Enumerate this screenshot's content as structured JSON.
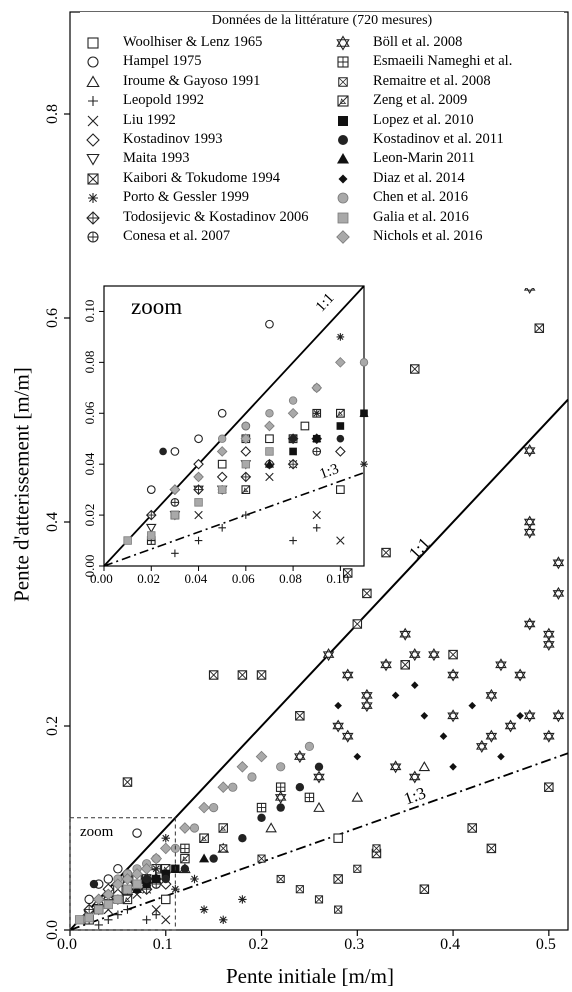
{
  "chart_data": {
    "type": "scatter",
    "xlabel": "Pente initiale [m/m]",
    "ylabel": "Pente d'atterissement [m/m]",
    "xlim": [
      0,
      0.52
    ],
    "ylim": [
      0,
      0.9
    ],
    "xticks": [
      "0.0",
      "0.1",
      "0.2",
      "0.3",
      "0.4",
      "0.5"
    ],
    "yticks": [
      "0.0",
      "0.2",
      "0.4",
      "0.6",
      "0.8"
    ],
    "legend_title": "Données de la littérature (720 mesures)",
    "legend_position": "top",
    "lines": [
      {
        "label": "1:1",
        "slope": 1.0,
        "style": "solid"
      },
      {
        "label": "1:3",
        "slope": 0.3333,
        "style": "dashdot"
      }
    ],
    "zoom_region_label": "zoom",
    "zoom_region": {
      "x": [
        0,
        0.11
      ],
      "y": [
        0,
        0.11
      ]
    },
    "inset": {
      "title": "zoom",
      "xlim": [
        0,
        0.11
      ],
      "ylim": [
        0,
        0.11
      ],
      "xticks": [
        "0.00",
        "0.02",
        "0.04",
        "0.06",
        "0.08",
        "0.10"
      ],
      "yticks": [
        "0.00",
        "0.02",
        "0.04",
        "0.06",
        "0.08",
        "0.10"
      ],
      "line_labels": [
        "1:1",
        "1:3"
      ]
    },
    "series": [
      {
        "name": "Woolhiser & Lenz 1965",
        "marker": "square-open",
        "points": [
          [
            0.28,
            0.09
          ],
          [
            0.03,
            0.02
          ],
          [
            0.05,
            0.04
          ],
          [
            0.07,
            0.05
          ],
          [
            0.09,
            0.06
          ],
          [
            0.1,
            0.03
          ],
          [
            0.02,
            0.01
          ],
          [
            0.06,
            0.05
          ],
          [
            0.085,
            0.055
          ]
        ]
      },
      {
        "name": "Hampel 1975",
        "marker": "circle-open",
        "points": [
          [
            0.02,
            0.03
          ],
          [
            0.03,
            0.045
          ],
          [
            0.07,
            0.095
          ],
          [
            0.05,
            0.06
          ],
          [
            0.04,
            0.05
          ],
          [
            0.06,
            0.055
          ]
        ]
      },
      {
        "name": "Iroume & Gayoso 1991",
        "marker": "triangle-open",
        "points": [
          [
            0.26,
            0.12
          ],
          [
            0.16,
            0.08
          ],
          [
            0.12,
            0.06
          ],
          [
            0.37,
            0.16
          ],
          [
            0.3,
            0.13
          ],
          [
            0.21,
            0.1
          ]
        ]
      },
      {
        "name": "Leopold 1992",
        "marker": "plus",
        "points": [
          [
            0.02,
            0.01
          ],
          [
            0.04,
            0.01
          ],
          [
            0.06,
            0.02
          ],
          [
            0.08,
            0.01
          ],
          [
            0.09,
            0.015
          ],
          [
            0.03,
            0.005
          ],
          [
            0.05,
            0.015
          ]
        ]
      },
      {
        "name": "Liu 1992",
        "marker": "cross",
        "points": [
          [
            0.06,
            0.03
          ],
          [
            0.08,
            0.04
          ],
          [
            0.09,
            0.02
          ],
          [
            0.1,
            0.01
          ],
          [
            0.04,
            0.02
          ],
          [
            0.07,
            0.035
          ]
        ]
      },
      {
        "name": "Kostadinov 1993",
        "marker": "diamond-open",
        "points": [
          [
            0.04,
            0.04
          ],
          [
            0.05,
            0.035
          ],
          [
            0.06,
            0.045
          ],
          [
            0.07,
            0.04
          ],
          [
            0.08,
            0.05
          ],
          [
            0.09,
            0.05
          ],
          [
            0.1,
            0.045
          ],
          [
            0.03,
            0.03
          ]
        ]
      },
      {
        "name": "Maita 1993",
        "marker": "triangle-down-open",
        "points": [
          [
            0.02,
            0.015
          ],
          [
            0.03,
            0.02
          ],
          [
            0.04,
            0.03
          ],
          [
            0.05,
            0.03
          ],
          [
            0.06,
            0.04
          ]
        ]
      },
      {
        "name": "Kaibori & Tokudome 1994",
        "marker": "square-x",
        "points": [
          [
            0.36,
            0.55
          ],
          [
            0.49,
            0.59
          ],
          [
            0.15,
            0.25
          ],
          [
            0.06,
            0.145
          ],
          [
            0.18,
            0.25
          ],
          [
            0.29,
            0.35
          ],
          [
            0.33,
            0.37
          ],
          [
            0.4,
            0.27
          ],
          [
            0.42,
            0.1
          ],
          [
            0.44,
            0.08
          ],
          [
            0.5,
            0.14
          ],
          [
            0.37,
            0.04
          ],
          [
            0.28,
            0.05
          ],
          [
            0.32,
            0.075
          ],
          [
            0.2,
            0.25
          ],
          [
            0.24,
            0.21
          ],
          [
            0.35,
            0.26
          ],
          [
            0.3,
            0.3
          ],
          [
            0.31,
            0.33
          ]
        ]
      },
      {
        "name": "Porto & Gessler 1999",
        "marker": "asterisk",
        "points": [
          [
            0.1,
            0.09
          ],
          [
            0.14,
            0.02
          ],
          [
            0.16,
            0.01
          ],
          [
            0.18,
            0.03
          ],
          [
            0.13,
            0.05
          ],
          [
            0.12,
            0.08
          ],
          [
            0.09,
            0.06
          ],
          [
            0.11,
            0.04
          ]
        ]
      },
      {
        "name": "Todosijevic & Kostadinov 2006",
        "marker": "circle-plus",
        "points": [
          [
            0.02,
            0.02
          ],
          [
            0.04,
            0.03
          ],
          [
            0.06,
            0.035
          ],
          [
            0.08,
            0.04
          ]
        ]
      },
      {
        "name": "Conesa et al. 2007",
        "marker": "circle-cross",
        "points": [
          [
            0.03,
            0.025
          ],
          [
            0.05,
            0.03
          ],
          [
            0.07,
            0.04
          ],
          [
            0.09,
            0.045
          ]
        ]
      },
      {
        "name": "Böll et al. 2008",
        "marker": "star-of-david",
        "points": [
          [
            0.48,
            0.63
          ],
          [
            0.49,
            0.64
          ],
          [
            0.48,
            0.47
          ],
          [
            0.48,
            0.4
          ],
          [
            0.48,
            0.39
          ],
          [
            0.48,
            0.3
          ],
          [
            0.5,
            0.28
          ],
          [
            0.5,
            0.29
          ],
          [
            0.51,
            0.33
          ],
          [
            0.51,
            0.36
          ],
          [
            0.5,
            0.19
          ],
          [
            0.48,
            0.21
          ],
          [
            0.46,
            0.2
          ],
          [
            0.44,
            0.23
          ],
          [
            0.44,
            0.19
          ],
          [
            0.43,
            0.18
          ],
          [
            0.4,
            0.25
          ],
          [
            0.4,
            0.21
          ],
          [
            0.38,
            0.27
          ],
          [
            0.36,
            0.27
          ],
          [
            0.35,
            0.29
          ],
          [
            0.33,
            0.26
          ],
          [
            0.31,
            0.23
          ],
          [
            0.31,
            0.22
          ],
          [
            0.29,
            0.19
          ],
          [
            0.28,
            0.2
          ],
          [
            0.26,
            0.15
          ],
          [
            0.24,
            0.17
          ],
          [
            0.22,
            0.13
          ],
          [
            0.45,
            0.26
          ],
          [
            0.47,
            0.25
          ],
          [
            0.51,
            0.21
          ],
          [
            0.34,
            0.16
          ],
          [
            0.36,
            0.15
          ],
          [
            0.27,
            0.27
          ],
          [
            0.29,
            0.25
          ]
        ]
      },
      {
        "name": "Esmaeili Nameghi et al.",
        "marker": "square-plus",
        "points": [
          [
            0.08,
            0.05
          ],
          [
            0.1,
            0.06
          ],
          [
            0.12,
            0.08
          ],
          [
            0.14,
            0.09
          ],
          [
            0.2,
            0.12
          ],
          [
            0.22,
            0.14
          ],
          [
            0.25,
            0.13
          ]
        ]
      },
      {
        "name": "Remaitre et al. 2008",
        "marker": "square-x-small",
        "points": [
          [
            0.16,
            0.08
          ],
          [
            0.2,
            0.07
          ],
          [
            0.22,
            0.05
          ],
          [
            0.24,
            0.04
          ],
          [
            0.26,
            0.03
          ],
          [
            0.28,
            0.02
          ],
          [
            0.3,
            0.06
          ],
          [
            0.32,
            0.08
          ]
        ]
      },
      {
        "name": "Zeng et al. 2009",
        "marker": "square-slash",
        "points": [
          [
            0.06,
            0.03
          ],
          [
            0.08,
            0.05
          ],
          [
            0.1,
            0.06
          ],
          [
            0.12,
            0.07
          ],
          [
            0.14,
            0.09
          ],
          [
            0.16,
            0.1
          ]
        ]
      },
      {
        "name": "Lopez et al. 2010",
        "marker": "square-filled",
        "points": [
          [
            0.1,
            0.055
          ],
          [
            0.11,
            0.06
          ],
          [
            0.09,
            0.05
          ],
          [
            0.08,
            0.045
          ]
        ]
      },
      {
        "name": "Kostadinov et al. 2011",
        "marker": "circle-filled",
        "points": [
          [
            0.025,
            0.045
          ],
          [
            0.04,
            0.035
          ],
          [
            0.06,
            0.04
          ],
          [
            0.08,
            0.05
          ],
          [
            0.1,
            0.05
          ],
          [
            0.12,
            0.06
          ],
          [
            0.15,
            0.07
          ],
          [
            0.18,
            0.09
          ],
          [
            0.2,
            0.11
          ],
          [
            0.22,
            0.12
          ],
          [
            0.24,
            0.14
          ],
          [
            0.26,
            0.16
          ]
        ]
      },
      {
        "name": "Leon-Marin 2011",
        "marker": "triangle-filled",
        "points": [
          [
            0.05,
            0.03
          ],
          [
            0.07,
            0.04
          ],
          [
            0.09,
            0.05
          ],
          [
            0.11,
            0.06
          ],
          [
            0.14,
            0.07
          ]
        ]
      },
      {
        "name": "Diaz et al. 2014",
        "marker": "diamond-filled",
        "points": [
          [
            0.34,
            0.23
          ],
          [
            0.37,
            0.21
          ],
          [
            0.4,
            0.16
          ],
          [
            0.42,
            0.22
          ],
          [
            0.47,
            0.21
          ],
          [
            0.45,
            0.17
          ],
          [
            0.39,
            0.19
          ],
          [
            0.36,
            0.24
          ],
          [
            0.3,
            0.17
          ],
          [
            0.28,
            0.22
          ]
        ]
      },
      {
        "name": "Chen et al. 2016",
        "marker": "circle-grey",
        "points": [
          [
            0.05,
            0.05
          ],
          [
            0.06,
            0.055
          ],
          [
            0.07,
            0.06
          ],
          [
            0.08,
            0.065
          ],
          [
            0.09,
            0.07
          ],
          [
            0.11,
            0.08
          ],
          [
            0.13,
            0.1
          ],
          [
            0.15,
            0.12
          ],
          [
            0.17,
            0.14
          ],
          [
            0.19,
            0.15
          ],
          [
            0.22,
            0.16
          ],
          [
            0.25,
            0.18
          ]
        ]
      },
      {
        "name": "Galia et al. 2016",
        "marker": "square-grey",
        "points": [
          [
            0.01,
            0.01
          ],
          [
            0.02,
            0.012
          ],
          [
            0.03,
            0.02
          ],
          [
            0.04,
            0.025
          ],
          [
            0.05,
            0.03
          ],
          [
            0.06,
            0.04
          ],
          [
            0.07,
            0.045
          ]
        ]
      },
      {
        "name": "Nichols et al. 2016",
        "marker": "diamond-grey",
        "points": [
          [
            0.03,
            0.03
          ],
          [
            0.04,
            0.035
          ],
          [
            0.05,
            0.045
          ],
          [
            0.06,
            0.05
          ],
          [
            0.07,
            0.055
          ],
          [
            0.08,
            0.06
          ],
          [
            0.09,
            0.07
          ],
          [
            0.1,
            0.08
          ],
          [
            0.12,
            0.1
          ],
          [
            0.14,
            0.12
          ],
          [
            0.16,
            0.14
          ],
          [
            0.18,
            0.16
          ],
          [
            0.2,
            0.17
          ]
        ]
      }
    ]
  }
}
